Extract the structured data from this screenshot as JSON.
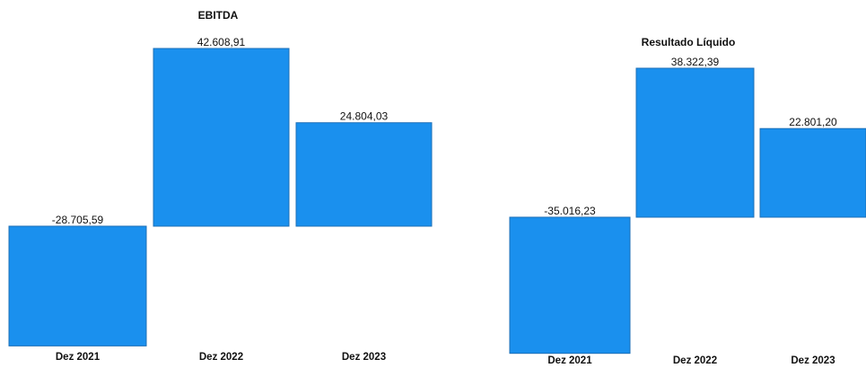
{
  "chart_data": [
    {
      "type": "bar",
      "title": "EBITDA",
      "categories": [
        "Dez 2021",
        "Dez 2022",
        "Dez 2023"
      ],
      "values": [
        -28705.59,
        42608.91,
        24804.03
      ],
      "value_labels": [
        "-28.705,59",
        "42.608,91",
        "24.804,03"
      ],
      "xlabel": "",
      "ylabel": "",
      "grid": false,
      "legend": "none",
      "bar_color": "#1a90ee"
    },
    {
      "type": "bar",
      "title": "Resultado Líquido",
      "categories": [
        "Dez 2021",
        "Dez 2022",
        "Dez 2023"
      ],
      "values": [
        -35016.23,
        38322.39,
        22801.2
      ],
      "value_labels": [
        "-35.016,23",
        "38.322,39",
        "22.801,20"
      ],
      "xlabel": "",
      "ylabel": "",
      "grid": false,
      "legend": "none",
      "bar_color": "#1a90ee"
    }
  ]
}
